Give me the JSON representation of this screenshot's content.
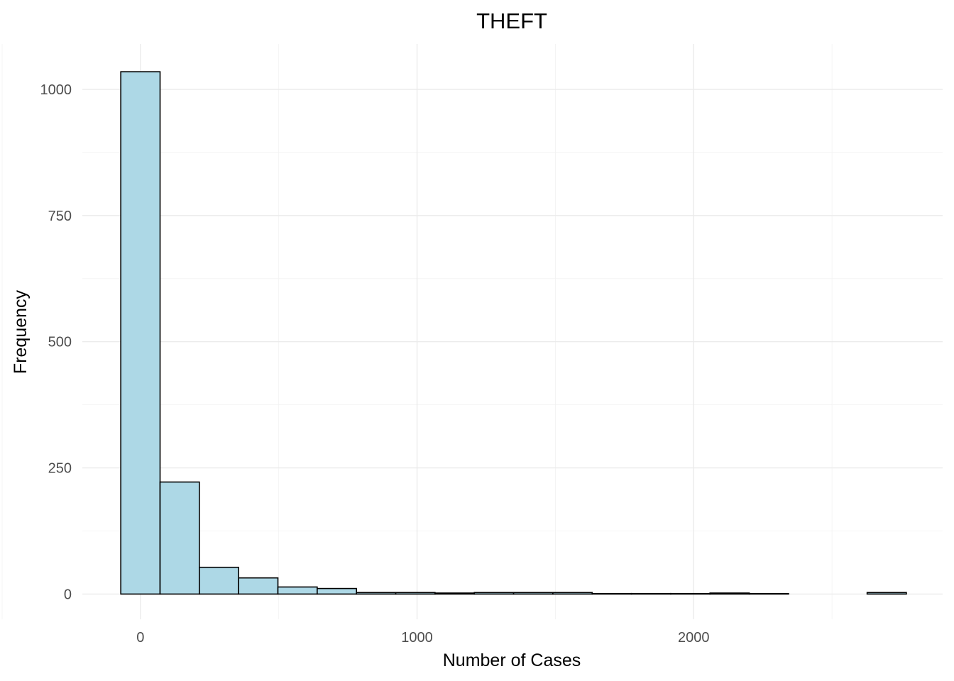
{
  "chart_data": {
    "type": "bar",
    "title": "THEFT",
    "xlabel": "Number of Cases",
    "ylabel": "Frequency",
    "bin_width": 142,
    "bins": [
      {
        "x0": -71,
        "x1": 71,
        "count": 1035
      },
      {
        "x0": 71,
        "x1": 213,
        "count": 222
      },
      {
        "x0": 213,
        "x1": 355,
        "count": 53
      },
      {
        "x0": 355,
        "x1": 497,
        "count": 32
      },
      {
        "x0": 497,
        "x1": 639,
        "count": 14
      },
      {
        "x0": 639,
        "x1": 781,
        "count": 11
      },
      {
        "x0": 781,
        "x1": 923,
        "count": 3
      },
      {
        "x0": 923,
        "x1": 1065,
        "count": 3
      },
      {
        "x0": 1065,
        "x1": 1207,
        "count": 2
      },
      {
        "x0": 1207,
        "x1": 1349,
        "count": 3
      },
      {
        "x0": 1349,
        "x1": 1491,
        "count": 3
      },
      {
        "x0": 1491,
        "x1": 1633,
        "count": 3
      },
      {
        "x0": 1633,
        "x1": 1775,
        "count": 1
      },
      {
        "x0": 1775,
        "x1": 1917,
        "count": 1
      },
      {
        "x0": 1917,
        "x1": 2059,
        "count": 1
      },
      {
        "x0": 2059,
        "x1": 2201,
        "count": 2
      },
      {
        "x0": 2201,
        "x1": 2343,
        "count": 1
      },
      {
        "x0": 2343,
        "x1": 2485,
        "count": 0
      },
      {
        "x0": 2485,
        "x1": 2627,
        "count": 0
      },
      {
        "x0": 2627,
        "x1": 2769,
        "count": 3
      }
    ],
    "xlim": [
      -210,
      2900
    ],
    "ylim": [
      -50,
      1090
    ],
    "xticks": [
      0,
      1000,
      2000
    ],
    "xtick_labels": [
      "0",
      "1000",
      "2000"
    ],
    "yticks": [
      0,
      250,
      500,
      750,
      1000
    ],
    "ytick_labels": [
      "0",
      "250",
      "500",
      "750",
      "1000"
    ],
    "x_minor_ticks": [
      -500,
      500,
      1500,
      2500
    ],
    "y_minor_ticks": [
      125,
      375,
      625,
      875
    ],
    "grid": true,
    "legend": "none",
    "bar_fill": "#add8e6",
    "bar_outline": "#000000"
  }
}
